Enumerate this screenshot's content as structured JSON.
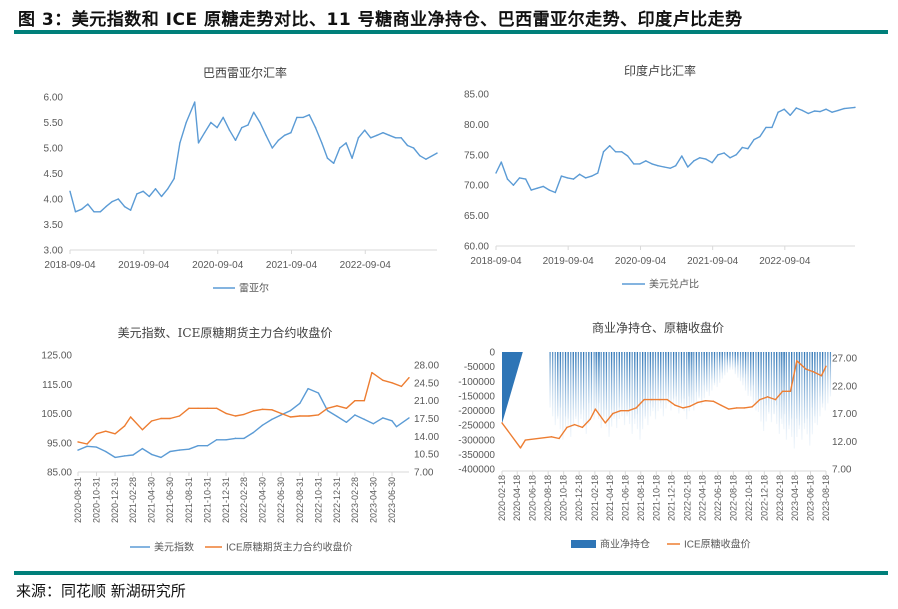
{
  "header": {
    "title": "图 3：美元指数和 ICE 原糖走势对比、11 号糖商业净持仓、巴西雷亚尔走势、印度卢比走势"
  },
  "footer": {
    "source": "来源：同花顺 新湖研究所"
  },
  "colors": {
    "blue": "#5b9bd5",
    "orange": "#ed7d31",
    "bar": "#2e75b6",
    "rule": "#007f7a"
  },
  "chart_data": [
    {
      "type": "line",
      "title": "巴西雷亚尔汇率",
      "ylim": [
        3.0,
        6.0
      ],
      "y_ticks": [
        "3.00",
        "3.50",
        "4.00",
        "4.50",
        "5.00",
        "5.50",
        "6.00"
      ],
      "x_ticks": [
        "2018-09-04",
        "2019-09-04",
        "2020-09-04",
        "2021-09-04",
        "2022-09-04"
      ],
      "x_range": [
        "2018-09-04",
        "2023-08-25"
      ],
      "legend_position": "bottom",
      "series": [
        {
          "name": "雷亚尔",
          "axis": "left",
          "color": "#5b9bd5",
          "x": [
            "2018-09-04",
            "2018-10-01",
            "2018-11-01",
            "2018-12-01",
            "2019-01-01",
            "2019-02-01",
            "2019-03-01",
            "2019-04-01",
            "2019-05-01",
            "2019-06-01",
            "2019-07-01",
            "2019-08-01",
            "2019-09-01",
            "2019-10-01",
            "2019-11-01",
            "2019-12-01",
            "2020-01-01",
            "2020-02-01",
            "2020-03-01",
            "2020-04-01",
            "2020-05-13",
            "2020-06-01",
            "2020-07-01",
            "2020-08-01",
            "2020-09-01",
            "2020-10-01",
            "2020-11-01",
            "2020-12-01",
            "2021-01-01",
            "2021-02-01",
            "2021-03-01",
            "2021-04-01",
            "2021-05-01",
            "2021-06-01",
            "2021-07-01",
            "2021-08-01",
            "2021-09-01",
            "2021-10-01",
            "2021-11-01",
            "2021-12-01",
            "2022-01-01",
            "2022-02-01",
            "2022-03-01",
            "2022-04-01",
            "2022-05-01",
            "2022-06-01",
            "2022-07-01",
            "2022-08-01",
            "2022-09-01",
            "2022-10-01",
            "2022-11-01",
            "2022-12-01",
            "2023-01-01",
            "2023-02-01",
            "2023-03-01",
            "2023-04-01",
            "2023-05-01",
            "2023-06-01",
            "2023-07-01",
            "2023-08-25"
          ],
          "values": [
            4.15,
            3.75,
            3.8,
            3.9,
            3.75,
            3.75,
            3.85,
            3.95,
            4.0,
            3.85,
            3.78,
            4.1,
            4.15,
            4.05,
            4.2,
            4.05,
            4.2,
            4.4,
            5.1,
            5.5,
            5.9,
            5.1,
            5.3,
            5.5,
            5.4,
            5.6,
            5.35,
            5.15,
            5.4,
            5.45,
            5.7,
            5.5,
            5.25,
            5.0,
            5.15,
            5.25,
            5.3,
            5.6,
            5.6,
            5.65,
            5.4,
            5.1,
            4.8,
            4.7,
            5.0,
            5.1,
            4.8,
            5.2,
            5.35,
            5.2,
            5.25,
            5.3,
            5.25,
            5.2,
            5.2,
            5.05,
            5.0,
            4.85,
            4.78,
            4.9
          ]
        }
      ]
    },
    {
      "type": "line",
      "title": "印度卢比汇率",
      "ylim": [
        60,
        85
      ],
      "y_ticks": [
        "60.00",
        "65.00",
        "70.00",
        "75.00",
        "80.00",
        "85.00"
      ],
      "x_ticks": [
        "2018-09-04",
        "2019-09-04",
        "2020-09-04",
        "2021-09-04",
        "2022-09-04"
      ],
      "x_range": [
        "2018-09-04",
        "2023-08-25"
      ],
      "legend_position": "bottom",
      "series": [
        {
          "name": "美元兑卢比",
          "axis": "left",
          "color": "#5b9bd5",
          "x": [
            "2018-09-04",
            "2018-10-01",
            "2018-11-01",
            "2018-12-01",
            "2019-01-01",
            "2019-02-01",
            "2019-03-01",
            "2019-04-01",
            "2019-05-01",
            "2019-06-01",
            "2019-07-01",
            "2019-08-01",
            "2019-09-01",
            "2019-10-01",
            "2019-11-01",
            "2019-12-01",
            "2020-01-01",
            "2020-02-01",
            "2020-03-01",
            "2020-04-01",
            "2020-05-01",
            "2020-06-01",
            "2020-07-01",
            "2020-08-01",
            "2020-09-01",
            "2020-10-01",
            "2020-11-01",
            "2020-12-01",
            "2021-01-01",
            "2021-02-01",
            "2021-03-01",
            "2021-04-01",
            "2021-05-01",
            "2021-06-01",
            "2021-07-01",
            "2021-08-01",
            "2021-09-01",
            "2021-10-01",
            "2021-11-01",
            "2021-12-01",
            "2022-01-01",
            "2022-02-01",
            "2022-03-01",
            "2022-04-01",
            "2022-05-01",
            "2022-06-01",
            "2022-07-01",
            "2022-08-01",
            "2022-09-01",
            "2022-10-01",
            "2022-11-01",
            "2022-12-01",
            "2023-01-01",
            "2023-02-01",
            "2023-03-01",
            "2023-04-01",
            "2023-05-01",
            "2023-06-01",
            "2023-07-01",
            "2023-08-25"
          ],
          "values": [
            72.0,
            73.8,
            71,
            70,
            71.2,
            71,
            69.2,
            69.5,
            69.8,
            69.2,
            68.8,
            71.5,
            71.2,
            71,
            71.8,
            71.2,
            71.5,
            72,
            75.5,
            76.5,
            75.5,
            75.5,
            74.8,
            73.5,
            73.5,
            74,
            73.5,
            73.2,
            73,
            72.8,
            73.2,
            74.8,
            73,
            74,
            74.5,
            74.3,
            73.7,
            75,
            75.3,
            74.5,
            75,
            76.2,
            76,
            77.5,
            78,
            79.5,
            79.5,
            82,
            82.5,
            81.5,
            82.7,
            82.3,
            81.8,
            82.2,
            82.1,
            82.5,
            82.0,
            82.3,
            82.6,
            82.8
          ]
        }
      ]
    },
    {
      "type": "line",
      "title": "美元指数、ICE原糖期货主力合约收盘价",
      "ylim": [
        85,
        125
      ],
      "y2lim": [
        7,
        28
      ],
      "y_ticks": [
        "85.00",
        "95.00",
        "105.00",
        "115.00",
        "125.00"
      ],
      "y2_ticks": [
        "7.00",
        "10.50",
        "14.00",
        "17.50",
        "21.00",
        "24.50",
        "28.00"
      ],
      "x_ticks": [
        "2020-08-31",
        "2020-10-31",
        "2020-12-31",
        "2021-02-28",
        "2021-04-30",
        "2021-06-30",
        "2021-08-31",
        "2021-10-31",
        "2021-12-31",
        "2022-02-28",
        "2022-04-30",
        "2022-06-30",
        "2022-08-31",
        "2022-10-31",
        "2022-12-31",
        "2023-02-28",
        "2023-04-30",
        "2023-06-30"
      ],
      "x_range": [
        "2020-08-31",
        "2023-08-25"
      ],
      "legend_position": "bottom",
      "series": [
        {
          "name": "美元指数",
          "axis": "left",
          "color": "#5b9bd5",
          "x": [
            "2020-08-31",
            "2020-09-30",
            "2020-10-31",
            "2020-11-30",
            "2020-12-31",
            "2021-01-31",
            "2021-02-28",
            "2021-03-31",
            "2021-04-30",
            "2021-05-31",
            "2021-06-30",
            "2021-07-31",
            "2021-08-31",
            "2021-09-30",
            "2021-10-31",
            "2021-11-30",
            "2021-12-31",
            "2022-01-31",
            "2022-02-28",
            "2022-03-31",
            "2022-04-30",
            "2022-05-31",
            "2022-06-30",
            "2022-07-31",
            "2022-08-31",
            "2022-09-27",
            "2022-10-31",
            "2022-11-30",
            "2022-12-31",
            "2023-01-31",
            "2023-02-28",
            "2023-03-31",
            "2023-04-30",
            "2023-05-31",
            "2023-06-30",
            "2023-07-15",
            "2023-08-25"
          ],
          "values": [
            92.5,
            93.8,
            93.5,
            92,
            90,
            90.5,
            90.8,
            93,
            91,
            90,
            92,
            92.5,
            92.8,
            94,
            94,
            96,
            96,
            96.5,
            96.5,
            98.5,
            101,
            103,
            104.5,
            106,
            108.5,
            113.5,
            112,
            106,
            104,
            102,
            104.5,
            103,
            101.5,
            103.5,
            102.5,
            100.5,
            103.5
          ]
        },
        {
          "name": "ICE原糖期货主力合约收盘价",
          "axis": "right",
          "color": "#ed7d31",
          "x": [
            "2020-08-31",
            "2020-09-30",
            "2020-10-31",
            "2020-11-30",
            "2020-12-31",
            "2021-01-31",
            "2021-02-20",
            "2021-03-31",
            "2021-04-30",
            "2021-05-31",
            "2021-06-30",
            "2021-07-31",
            "2021-08-31",
            "2021-09-30",
            "2021-10-31",
            "2021-11-30",
            "2021-12-31",
            "2022-01-31",
            "2022-02-28",
            "2022-03-31",
            "2022-04-30",
            "2022-05-31",
            "2022-06-30",
            "2022-07-31",
            "2022-08-31",
            "2022-09-30",
            "2022-10-31",
            "2022-11-30",
            "2022-12-31",
            "2023-01-31",
            "2023-02-28",
            "2023-03-31",
            "2023-04-25",
            "2023-05-31",
            "2023-06-30",
            "2023-07-31",
            "2023-08-25"
          ],
          "values": [
            12.9,
            12.5,
            14.5,
            15,
            14.5,
            16,
            17.8,
            15.3,
            17,
            17.5,
            17.5,
            18,
            19.5,
            19.5,
            19.5,
            19.5,
            18.5,
            18,
            18.3,
            19,
            19.3,
            19.2,
            18.5,
            17.8,
            18,
            18,
            18.2,
            19.5,
            20,
            19.5,
            21,
            21,
            26.5,
            25,
            24.5,
            23.8,
            25.5
          ]
        }
      ]
    },
    {
      "type": "bar+line",
      "title": "商业净持仓、原糖收盘价",
      "ylim": [
        -400000,
        0
      ],
      "y2lim": [
        7,
        27
      ],
      "y_ticks": [
        "-400000",
        "-350000",
        "-300000",
        "-250000",
        "-200000",
        "-150000",
        "-100000",
        "-50000",
        "0"
      ],
      "y2_ticks": [
        "7.00",
        "12.00",
        "17.00",
        "22.00",
        "27.00"
      ],
      "x_ticks": [
        "2020-02-18",
        "2020-04-18",
        "2020-06-18",
        "2020-08-18",
        "2020-10-18",
        "2020-12-18",
        "2021-02-18",
        "2021-04-18",
        "2021-06-18",
        "2021-08-18",
        "2021-10-18",
        "2021-12-18",
        "2022-02-18",
        "2022-04-18",
        "2022-06-18",
        "2022-08-18",
        "2022-10-18",
        "2022-12-18",
        "2023-02-18",
        "2023-04-18",
        "2023-06-18",
        "2023-08-18"
      ],
      "x_range": [
        "2020-02-18",
        "2023-08-18"
      ],
      "legend_position": "bottom",
      "series": [
        {
          "name": "商业净持仓",
          "axis": "left",
          "type": "bar",
          "color": "#2e75b6",
          "area_x": [
            "2020-02-18",
            "2020-05-10"
          ],
          "area_values": [
            -245000,
            0
          ],
          "x": [
            "2020-09-15",
            "2020-10-15",
            "2020-11-15",
            "2020-12-15",
            "2021-01-15",
            "2021-02-15",
            "2021-03-15",
            "2021-04-15",
            "2021-05-15",
            "2021-06-15",
            "2021-07-15",
            "2021-08-15",
            "2021-09-15",
            "2021-10-15",
            "2021-11-15",
            "2021-12-15",
            "2022-01-15",
            "2022-02-15",
            "2022-03-15",
            "2022-04-15",
            "2022-05-15",
            "2022-06-15",
            "2022-07-15",
            "2022-08-15",
            "2022-09-15",
            "2022-10-15",
            "2022-11-15",
            "2022-12-15",
            "2023-01-15",
            "2023-02-15",
            "2023-03-15",
            "2023-04-15",
            "2023-05-15",
            "2023-06-15",
            "2023-07-15",
            "2023-08-15"
          ],
          "values": [
            -250000,
            -300000,
            -290000,
            -260000,
            -280000,
            -230000,
            -260000,
            -290000,
            -260000,
            -250000,
            -280000,
            -300000,
            -250000,
            -230000,
            -220000,
            -200000,
            -210000,
            -230000,
            -200000,
            -180000,
            -150000,
            -120000,
            -80000,
            -60000,
            -100000,
            -150000,
            -200000,
            -270000,
            -240000,
            -280000,
            -300000,
            -330000,
            -300000,
            -320000,
            -250000,
            -200000
          ]
        },
        {
          "name": "ICE原糖收盘价",
          "axis": "right",
          "type": "line",
          "color": "#ed7d31",
          "x": [
            "2020-02-18",
            "2020-05-01",
            "2020-05-20",
            "2020-08-31",
            "2020-09-30",
            "2020-10-31",
            "2020-11-30",
            "2020-12-31",
            "2021-01-31",
            "2021-02-20",
            "2021-03-31",
            "2021-04-30",
            "2021-05-31",
            "2021-06-30",
            "2021-07-31",
            "2021-08-31",
            "2021-09-30",
            "2021-10-31",
            "2021-11-30",
            "2021-12-31",
            "2022-01-31",
            "2022-02-28",
            "2022-03-31",
            "2022-04-30",
            "2022-05-31",
            "2022-06-30",
            "2022-07-31",
            "2022-08-31",
            "2022-09-30",
            "2022-10-31",
            "2022-11-30",
            "2022-12-31",
            "2023-01-31",
            "2023-02-28",
            "2023-03-31",
            "2023-04-25",
            "2023-05-31",
            "2023-06-30",
            "2023-07-31",
            "2023-08-18"
          ],
          "values": [
            15.3,
            10.8,
            12.2,
            12.8,
            12.5,
            14.5,
            15,
            14.5,
            16,
            17.8,
            15.3,
            17,
            17.5,
            17.5,
            18,
            19.5,
            19.5,
            19.5,
            19.5,
            18.5,
            18,
            18.3,
            19,
            19.3,
            19.2,
            18.5,
            17.8,
            18,
            18,
            18.2,
            19.5,
            20,
            19.5,
            21,
            21,
            26.5,
            25,
            24.5,
            23.8,
            25.5
          ]
        }
      ]
    }
  ]
}
